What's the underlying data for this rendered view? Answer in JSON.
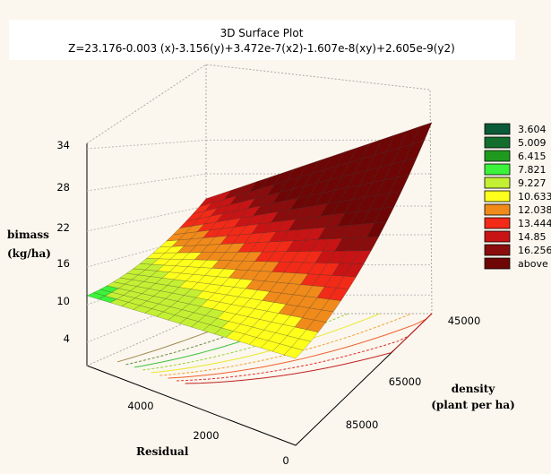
{
  "chart_data": {
    "type": "surface3d",
    "title": "3D  Surface Plot",
    "subtitle": "Z=23.176-0.003 (x)-3.156(y)+3.472e-7(x2)-1.607e-8(xy)+2.605e-9(y2)",
    "zlabel": [
      "bimass",
      "(kg/ha)"
    ],
    "xlabel": "Residual",
    "ylabel": [
      "density",
      "(plant per ha)"
    ],
    "z_ticks": [
      "34",
      "28",
      "22",
      "16",
      "10",
      "4"
    ],
    "x_ticks": [
      "4000",
      "2000",
      "0"
    ],
    "y_ticks": [
      "45000",
      "65000",
      "85000"
    ],
    "legend": [
      {
        "label": "3.604",
        "color": "#0b5a38"
      },
      {
        "label": "5.009",
        "color": "#136e2e"
      },
      {
        "label": "6.415",
        "color": "#1f9a1f"
      },
      {
        "label": "7.821",
        "color": "#3df23a"
      },
      {
        "label": "9.227",
        "color": "#c4f033"
      },
      {
        "label": "10.633",
        "color": "#ffff1c"
      },
      {
        "label": "12.038",
        "color": "#f08a1a"
      },
      {
        "label": "13.444",
        "color": "#f22a18"
      },
      {
        "label": "14.85",
        "color": "#c81414"
      },
      {
        "label": "16.256",
        "color": "#8a0c0c"
      },
      {
        "label": "above",
        "color": "#6e0606"
      }
    ]
  }
}
